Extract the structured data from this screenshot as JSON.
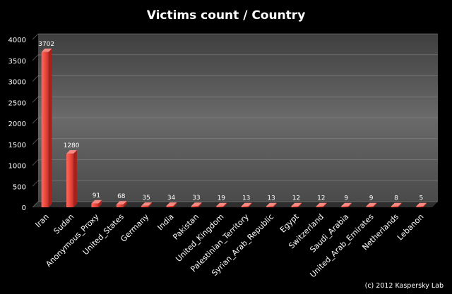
{
  "chart_data": {
    "type": "bar",
    "title": "Victims count / Country",
    "categories": [
      "Iran",
      "Sudan",
      "Anonymous_Proxy",
      "United_States",
      "Germany",
      "India",
      "Pakistan",
      "United_Kingdom",
      "Palestinian_Territory",
      "Syrian_Arab_Republic",
      "Egypt",
      "Switzerland",
      "Saudi_Arabia",
      "United_Arab_Emirates",
      "Netherlands",
      "Lebanon"
    ],
    "values": [
      3702,
      1280,
      91,
      68,
      35,
      34,
      33,
      19,
      13,
      13,
      12,
      12,
      9,
      9,
      8,
      5
    ],
    "ylim": [
      0,
      4000
    ],
    "yticks": [
      0,
      500,
      1000,
      1500,
      2000,
      2500,
      3000,
      3500,
      4000
    ],
    "grid": true,
    "legend": "none",
    "colors": {
      "bar": "#e8463c",
      "bar_side": "#a8201a",
      "bar_top": "#f58a82",
      "plot_bg": "#5a5a5a",
      "floor": "#3a3a3a",
      "grid": "#8a8a8a",
      "text": "#ffffff"
    }
  },
  "footer": {
    "copyright": "(c) 2012 Kaspersky Lab"
  }
}
